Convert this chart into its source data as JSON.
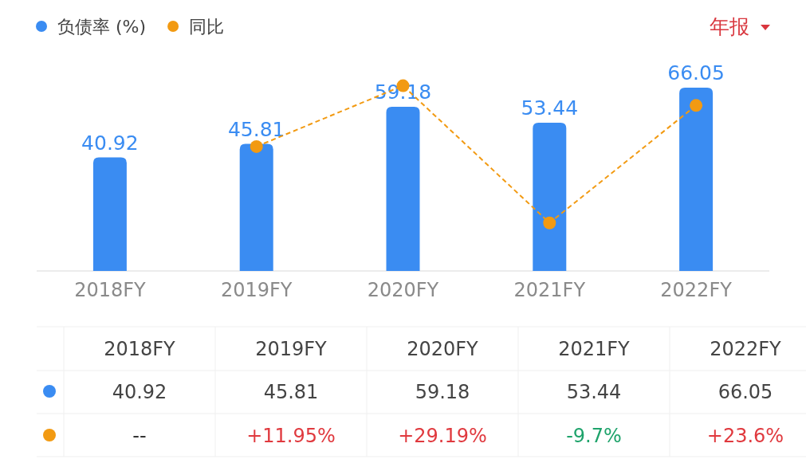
{
  "chart_data": {
    "type": "bar",
    "categories": [
      "2018FY",
      "2019FY",
      "2020FY",
      "2021FY",
      "2022FY"
    ],
    "tick_labels": "x",
    "legend": "top left",
    "annotations": [
      "年报",
      "40.92",
      "45.81",
      "59.18",
      "53.44",
      "66.05"
    ],
    "series": [
      {
        "name": "负债率 (%)",
        "color": "#3a8cf2",
        "values": [
          40.92,
          45.81,
          59.18,
          53.44,
          66.05
        ],
        "value_labels": [
          "40.92",
          "45.81",
          "59.18",
          "53.44",
          "66.05"
        ]
      },
      {
        "name": "同比",
        "type": "line",
        "axis": "y2",
        "color": "#f29a12",
        "line_style": "dashed",
        "marker": "circle",
        "values": [
          null,
          11.95,
          29.19,
          -9.7,
          23.6
        ],
        "value_labels": [
          "--",
          "+11.95%",
          "+29.19%",
          "-9.7%",
          "+23.6%"
        ]
      }
    ]
  }
}
